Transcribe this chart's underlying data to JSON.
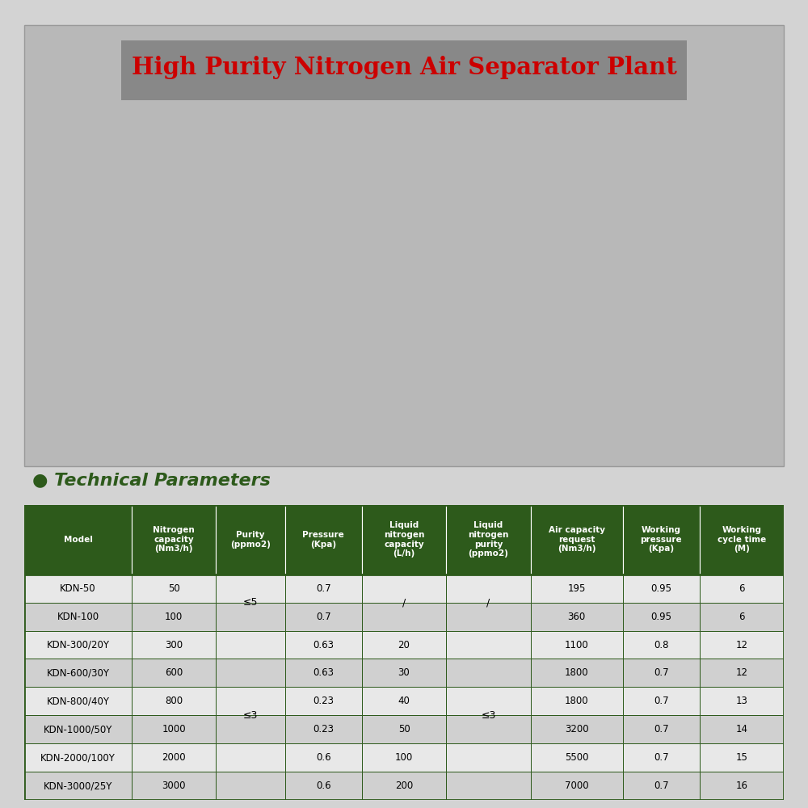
{
  "title": "High Purity Nitrogen Air Separator Plant",
  "title_color": "#CC0000",
  "title_bg_color": "#808080",
  "section_label": "● Technical Parameters",
  "section_label_color": "#2d5a1b",
  "bg_color": "#d3d3d3",
  "table_header_bg": "#2d5a1b",
  "table_header_text": "#ffffff",
  "table_row_bg1": "#e8e8e8",
  "table_row_bg2": "#d0d0d0",
  "table_border_color": "#2d5a1b",
  "headers": [
    "Model",
    "Nitrogen\ncapacity\n(Nm3/h)",
    "Purity\n(ppmo2)",
    "Pressure\n(Kpa)",
    "Liquid\nnitrogen\ncapacity\n(L/h)",
    "Liquid\nnitrogen\npurity\n(ppmo2)",
    "Air capacity\nrequest\n(Nm3/h)",
    "Working\npressure\n(Kpa)",
    "Working\ncycle time\n(M)"
  ],
  "col_widths": [
    1.4,
    1.1,
    0.9,
    1.0,
    1.1,
    1.1,
    1.2,
    1.0,
    1.1
  ],
  "rows": [
    [
      "KDN-50",
      "50",
      "",
      "0.7",
      "/",
      "/",
      "195",
      "0.95",
      "6"
    ],
    [
      "KDN-100",
      "100",
      "",
      "0.7",
      "",
      "",
      "360",
      "0.95",
      "6"
    ],
    [
      "KDN-300/20Y",
      "300",
      "",
      "0.63",
      "20",
      "",
      "1100",
      "0.8",
      "12"
    ],
    [
      "KDN-600/30Y",
      "600",
      "",
      "0.63",
      "30",
      "",
      "1800",
      "0.7",
      "12"
    ],
    [
      "KDN-800/40Y",
      "800",
      "",
      "0.23",
      "40",
      "",
      "1800",
      "0.7",
      "13"
    ],
    [
      "KDN-1000/50Y",
      "1000",
      "",
      "0.23",
      "50",
      "",
      "3200",
      "0.7",
      "14"
    ],
    [
      "KDN-2000/100Y",
      "2000",
      "",
      "0.6",
      "100",
      "",
      "5500",
      "0.7",
      "15"
    ],
    [
      "KDN-3000/25Y",
      "3000",
      "",
      "0.6",
      "200",
      "",
      "7000",
      "0.7",
      "16"
    ]
  ],
  "purity_merged": [
    "≤5",
    "≤3"
  ],
  "liq_cap_merged_top": "/",
  "liq_purity_merged_top": "/",
  "liq_purity_merged_bot": "≤3"
}
